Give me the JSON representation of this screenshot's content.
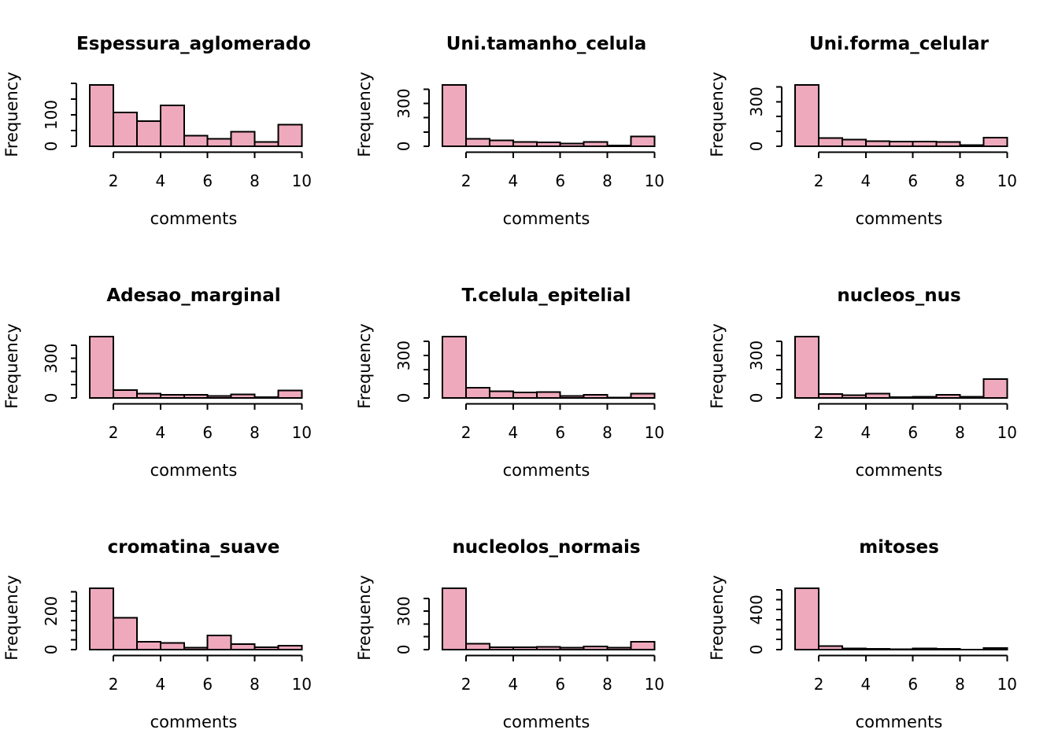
{
  "page": {
    "background": "#ffffff",
    "grid": {
      "rows": 3,
      "cols": 3
    }
  },
  "labels": {
    "ylabel": "Frequency",
    "xlabel": "comments"
  },
  "style": {
    "bar_fill": "#EFA9BC",
    "bar_stroke": "#000000",
    "axis_color": "#000000",
    "text_color": "#000000"
  },
  "x_axis": {
    "ticks": [
      2,
      4,
      6,
      8,
      10
    ],
    "tick_labels": [
      "2",
      "4",
      "6",
      "8",
      "10"
    ]
  },
  "chart_data": [
    {
      "type": "histogram",
      "title": "Espessura_aglomerado",
      "xlabel": "comments",
      "ylabel": "Frequency",
      "xlim": [
        1,
        10
      ],
      "bin_edges": [
        1,
        2,
        3,
        4,
        5,
        6,
        7,
        8,
        9,
        10
      ],
      "counts": [
        195,
        108,
        80,
        130,
        34,
        23,
        46,
        14,
        69
      ],
      "x_ticks": [
        2,
        4,
        6,
        8,
        10
      ],
      "y_ticks": [
        0,
        50,
        100,
        150,
        200
      ],
      "y_tick_labels_shown": [
        {
          "value": 0,
          "label": "0"
        },
        {
          "value": 100,
          "label": "100"
        }
      ]
    },
    {
      "type": "histogram",
      "title": "Uni.tamanho_celula",
      "xlabel": "comments",
      "ylabel": "Frequency",
      "xlim": [
        1,
        10
      ],
      "bin_edges": [
        1,
        2,
        3,
        4,
        5,
        6,
        7,
        8,
        9,
        10
      ],
      "counts": [
        429,
        52,
        40,
        30,
        27,
        19,
        29,
        6,
        67
      ],
      "x_ticks": [
        2,
        4,
        6,
        8,
        10
      ],
      "y_ticks": [
        0,
        100,
        200,
        300,
        400
      ],
      "y_tick_labels_shown": [
        {
          "value": 0,
          "label": "0"
        },
        {
          "value": 300,
          "label": "300"
        }
      ]
    },
    {
      "type": "histogram",
      "title": "Uni.forma_celular",
      "xlabel": "comments",
      "ylabel": "Frequency",
      "xlim": [
        1,
        10
      ],
      "bin_edges": [
        1,
        2,
        3,
        4,
        5,
        6,
        7,
        8,
        9,
        10
      ],
      "counts": [
        412,
        56,
        44,
        34,
        30,
        30,
        28,
        7,
        58
      ],
      "x_ticks": [
        2,
        4,
        6,
        8,
        10
      ],
      "y_ticks": [
        0,
        100,
        200,
        300,
        400
      ],
      "y_tick_labels_shown": [
        {
          "value": 0,
          "label": "0"
        },
        {
          "value": 300,
          "label": "300"
        }
      ]
    },
    {
      "type": "histogram",
      "title": "Adesao_marginal",
      "xlabel": "comments",
      "ylabel": "Frequency",
      "xlim": [
        1,
        10
      ],
      "bin_edges": [
        1,
        2,
        3,
        4,
        5,
        6,
        7,
        8,
        9,
        10
      ],
      "counts": [
        465,
        58,
        33,
        23,
        22,
        13,
        25,
        5,
        55
      ],
      "x_ticks": [
        2,
        4,
        6,
        8,
        10
      ],
      "y_ticks": [
        0,
        100,
        200,
        300,
        400
      ],
      "y_tick_labels_shown": [
        {
          "value": 0,
          "label": "0"
        },
        {
          "value": 300,
          "label": "300"
        }
      ]
    },
    {
      "type": "histogram",
      "title": "T.celula_epitelial",
      "xlabel": "comments",
      "ylabel": "Frequency",
      "xlim": [
        1,
        10
      ],
      "bin_edges": [
        1,
        2,
        3,
        4,
        5,
        6,
        7,
        8,
        9,
        10
      ],
      "counts": [
        433,
        72,
        48,
        39,
        41,
        12,
        21,
        2,
        31
      ],
      "x_ticks": [
        2,
        4,
        6,
        8,
        10
      ],
      "y_ticks": [
        0,
        100,
        200,
        300,
        400
      ],
      "y_tick_labels_shown": [
        {
          "value": 0,
          "label": "0"
        },
        {
          "value": 300,
          "label": "300"
        }
      ]
    },
    {
      "type": "histogram",
      "title": "nucleos_nus",
      "xlabel": "comments",
      "ylabel": "Frequency",
      "xlim": [
        1,
        10
      ],
      "bin_edges": [
        1,
        2,
        3,
        4,
        5,
        6,
        7,
        8,
        9,
        10
      ],
      "counts": [
        432,
        28,
        19,
        30,
        4,
        8,
        21,
        9,
        132
      ],
      "x_ticks": [
        2,
        4,
        6,
        8,
        10
      ],
      "y_ticks": [
        0,
        100,
        200,
        300,
        400
      ],
      "y_tick_labels_shown": [
        {
          "value": 0,
          "label": "0"
        },
        {
          "value": 300,
          "label": "300"
        }
      ]
    },
    {
      "type": "histogram",
      "title": "cromatina_suave",
      "xlabel": "comments",
      "ylabel": "Frequency",
      "xlim": [
        1,
        10
      ],
      "bin_edges": [
        1,
        2,
        3,
        4,
        5,
        6,
        7,
        8,
        9,
        10
      ],
      "counts": [
        318,
        165,
        40,
        34,
        10,
        73,
        28,
        11,
        20
      ],
      "x_ticks": [
        2,
        4,
        6,
        8,
        10
      ],
      "y_ticks": [
        0,
        50,
        100,
        150,
        200,
        250,
        300
      ],
      "y_tick_labels_shown": [
        {
          "value": 0,
          "label": "0"
        },
        {
          "value": 200,
          "label": "200"
        }
      ]
    },
    {
      "type": "histogram",
      "title": "nucleolos_normais",
      "xlabel": "comments",
      "ylabel": "Frequency",
      "xlim": [
        1,
        10
      ],
      "bin_edges": [
        1,
        2,
        3,
        4,
        5,
        6,
        7,
        8,
        9,
        10
      ],
      "counts": [
        479,
        44,
        18,
        19,
        22,
        16,
        24,
        16,
        61
      ],
      "x_ticks": [
        2,
        4,
        6,
        8,
        10
      ],
      "y_ticks": [
        0,
        100,
        200,
        300,
        400
      ],
      "y_tick_labels_shown": [
        {
          "value": 0,
          "label": "0"
        },
        {
          "value": 300,
          "label": "300"
        }
      ]
    },
    {
      "type": "histogram",
      "title": "mitoses",
      "xlabel": "comments",
      "ylabel": "Frequency",
      "xlim": [
        1,
        10
      ],
      "bin_edges": [
        1,
        2,
        3,
        4,
        5,
        6,
        7,
        8,
        9,
        10
      ],
      "counts": [
        614,
        33,
        12,
        6,
        3,
        9,
        8,
        0,
        14
      ],
      "x_ticks": [
        2,
        4,
        6,
        8,
        10
      ],
      "y_ticks": [
        0,
        100,
        200,
        300,
        400,
        500,
        600
      ],
      "y_tick_labels_shown": [
        {
          "value": 0,
          "label": "0"
        },
        {
          "value": 400,
          "label": "400"
        }
      ]
    }
  ]
}
